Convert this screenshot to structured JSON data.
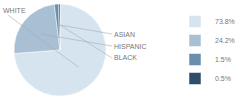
{
  "chart_data": {
    "type": "pie",
    "categories": [
      "73.8%",
      "24.2%",
      "1.5%",
      "0.5%"
    ],
    "values": [
      73.8,
      24.2,
      1.5,
      0.5
    ],
    "colors": [
      "#d6e4f0",
      "#a8bfd4",
      "#6a8fae",
      "#2d4d6b"
    ],
    "annotations": [
      "WHITE",
      "HISPANIC",
      "ASIAN",
      "BLACK"
    ],
    "legend": "right"
  }
}
